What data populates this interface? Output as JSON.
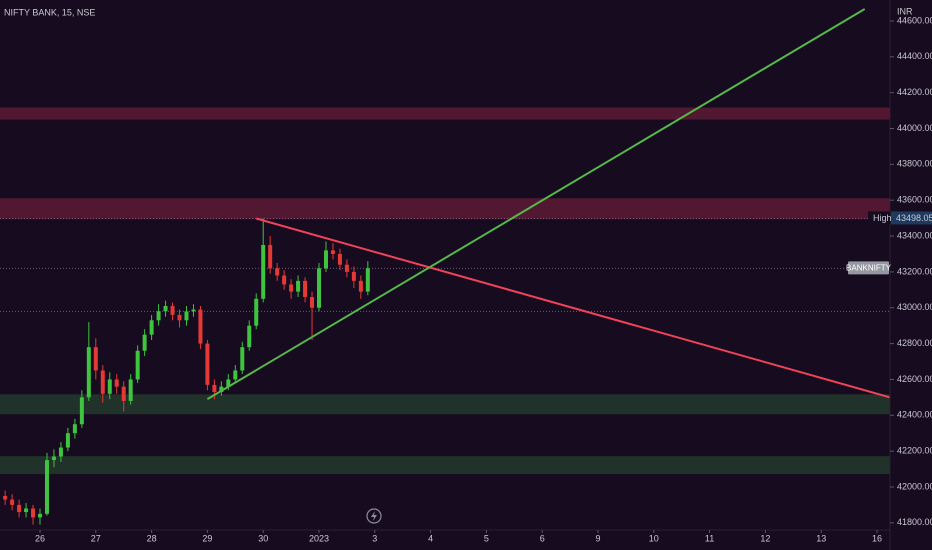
{
  "chart_data": {
    "type": "candlestick",
    "title": "NIFTY BANK, 15, NSE",
    "y_axis_label": "INR",
    "up_color": "#3ec43e",
    "down_color": "#e53935",
    "xlim": [
      -0.717,
      15.233
    ],
    "ylim": [
      41760,
      44717
    ],
    "xticks": [
      {
        "value": 0,
        "label": "26"
      },
      {
        "value": 1,
        "label": "27"
      },
      {
        "value": 2,
        "label": "28"
      },
      {
        "value": 3,
        "label": "29"
      },
      {
        "value": 4,
        "label": "30"
      },
      {
        "value": 5,
        "label": "2023"
      },
      {
        "value": 6,
        "label": "3"
      },
      {
        "value": 7,
        "label": "4"
      },
      {
        "value": 8,
        "label": "5"
      },
      {
        "value": 9,
        "label": "6"
      },
      {
        "value": 10,
        "label": "9"
      },
      {
        "value": 11,
        "label": "10"
      },
      {
        "value": 12,
        "label": "11"
      },
      {
        "value": 13,
        "label": "12"
      },
      {
        "value": 14,
        "label": "13"
      },
      {
        "value": 15,
        "label": "16"
      }
    ],
    "yticks": [
      {
        "value": 41800,
        "label": "41800.00"
      },
      {
        "value": 42000,
        "label": "42000.00"
      },
      {
        "value": 42200,
        "label": "42200.00"
      },
      {
        "value": 42400,
        "label": "42400.00"
      },
      {
        "value": 42600,
        "label": "42600.00"
      },
      {
        "value": 42800,
        "label": "42800.00"
      },
      {
        "value": 43000,
        "label": "43000.00"
      },
      {
        "value": 43200,
        "label": "43200.00"
      },
      {
        "value": 43400,
        "label": "43400.00"
      },
      {
        "value": 43600,
        "label": "43600.00"
      },
      {
        "value": 43800,
        "label": "43800.00"
      },
      {
        "value": 44000,
        "label": "44000.00"
      },
      {
        "value": 44200,
        "label": "44200.00"
      },
      {
        "value": 44400,
        "label": "44400.00"
      },
      {
        "value": 44600,
        "label": "44600.00"
      }
    ],
    "x": [
      -0.625,
      -0.5,
      -0.375,
      -0.25,
      -0.125,
      0,
      0.125,
      0.25,
      0.375,
      0.5,
      0.625,
      0.75,
      0.875,
      1,
      1.125,
      1.25,
      1.375,
      1.5,
      1.625,
      1.75,
      1.875,
      2,
      2.125,
      2.25,
      2.375,
      2.5,
      2.625,
      2.75,
      2.875,
      3,
      3.125,
      3.25,
      3.375,
      3.5,
      3.625,
      3.75,
      3.875,
      4,
      4.125,
      4.25,
      4.375,
      4.5,
      4.625,
      4.75,
      4.875,
      5,
      5.125,
      5.25,
      5.375,
      5.5,
      5.625,
      5.75,
      5.875
    ],
    "open": [
      41950,
      41930,
      41900,
      41860,
      41880,
      41830,
      41850,
      42150,
      42170,
      42220,
      42300,
      42350,
      42500,
      42780,
      42650,
      42520,
      42600,
      42560,
      42480,
      42600,
      42760,
      42850,
      42930,
      42980,
      43010,
      42960,
      42930,
      42980,
      42990,
      42800,
      42570,
      42530,
      42560,
      42600,
      42650,
      42780,
      42900,
      43050,
      43350,
      43220,
      43180,
      43130,
      43090,
      43150,
      43060,
      43000,
      43220,
      43320,
      43300,
      43240,
      43200,
      43150,
      43090
    ],
    "high": [
      41980,
      41960,
      41930,
      41910,
      41900,
      41880,
      42190,
      42210,
      42250,
      42330,
      42380,
      42540,
      42920,
      42830,
      42680,
      42640,
      42630,
      42590,
      42630,
      42790,
      42880,
      42960,
      43020,
      43040,
      43030,
      42990,
      43010,
      43020,
      43010,
      42820,
      42600,
      42590,
      42630,
      42680,
      42810,
      42930,
      43080,
      43498.05,
      43400,
      43250,
      43210,
      43160,
      43180,
      43170,
      43090,
      43250,
      43370,
      43360,
      43330,
      43270,
      43230,
      43180,
      43260
    ],
    "low": [
      41900,
      41870,
      41830,
      41830,
      41790,
      41790,
      41840,
      42110,
      42140,
      42200,
      42270,
      42330,
      42480,
      42600,
      42470,
      42490,
      42520,
      42420,
      42460,
      42580,
      42730,
      42820,
      42900,
      42950,
      42930,
      42890,
      42900,
      42950,
      42770,
      42540,
      42490,
      42510,
      42540,
      42580,
      42630,
      42760,
      42880,
      43030,
      43190,
      43150,
      43100,
      43050,
      43060,
      43030,
      42820,
      42980,
      43200,
      43270,
      43210,
      43170,
      43110,
      43050,
      43070
    ],
    "close": [
      41930,
      41900,
      41860,
      41880,
      41830,
      41850,
      42150,
      42170,
      42220,
      42300,
      42350,
      42500,
      42780,
      42650,
      42520,
      42600,
      42560,
      42480,
      42600,
      42760,
      42850,
      42930,
      42980,
      43010,
      42960,
      42930,
      42980,
      42990,
      42800,
      42570,
      42530,
      42560,
      42600,
      42650,
      42780,
      42900,
      43050,
      43350,
      43220,
      43180,
      43130,
      43090,
      43150,
      43060,
      43000,
      43220,
      43320,
      43300,
      43240,
      43200,
      43150,
      43090,
      43220
    ],
    "zones": [
      {
        "from": 44050,
        "to": 44117,
        "color": "#5a1a33"
      },
      {
        "from": 43494,
        "to": 43611,
        "color": "#5a1a33"
      },
      {
        "from": 42406,
        "to": 42517,
        "color": "#22362b"
      },
      {
        "from": 42072,
        "to": 42172,
        "color": "#22362b"
      }
    ],
    "trendlines": [
      {
        "color": "#f0435a",
        "x": [
          3.875,
          15.233
        ],
        "y": [
          43498.05,
          42500
        ]
      },
      {
        "color": "#55b84a",
        "x": [
          3.0,
          14.78
        ],
        "y": [
          42490,
          44667
        ]
      }
    ],
    "price_lines": [
      {
        "label": "High",
        "value": 43498.05
      },
      {
        "label": "BANKNIFTY",
        "value": 43220
      },
      {
        "value": 42980
      }
    ]
  }
}
